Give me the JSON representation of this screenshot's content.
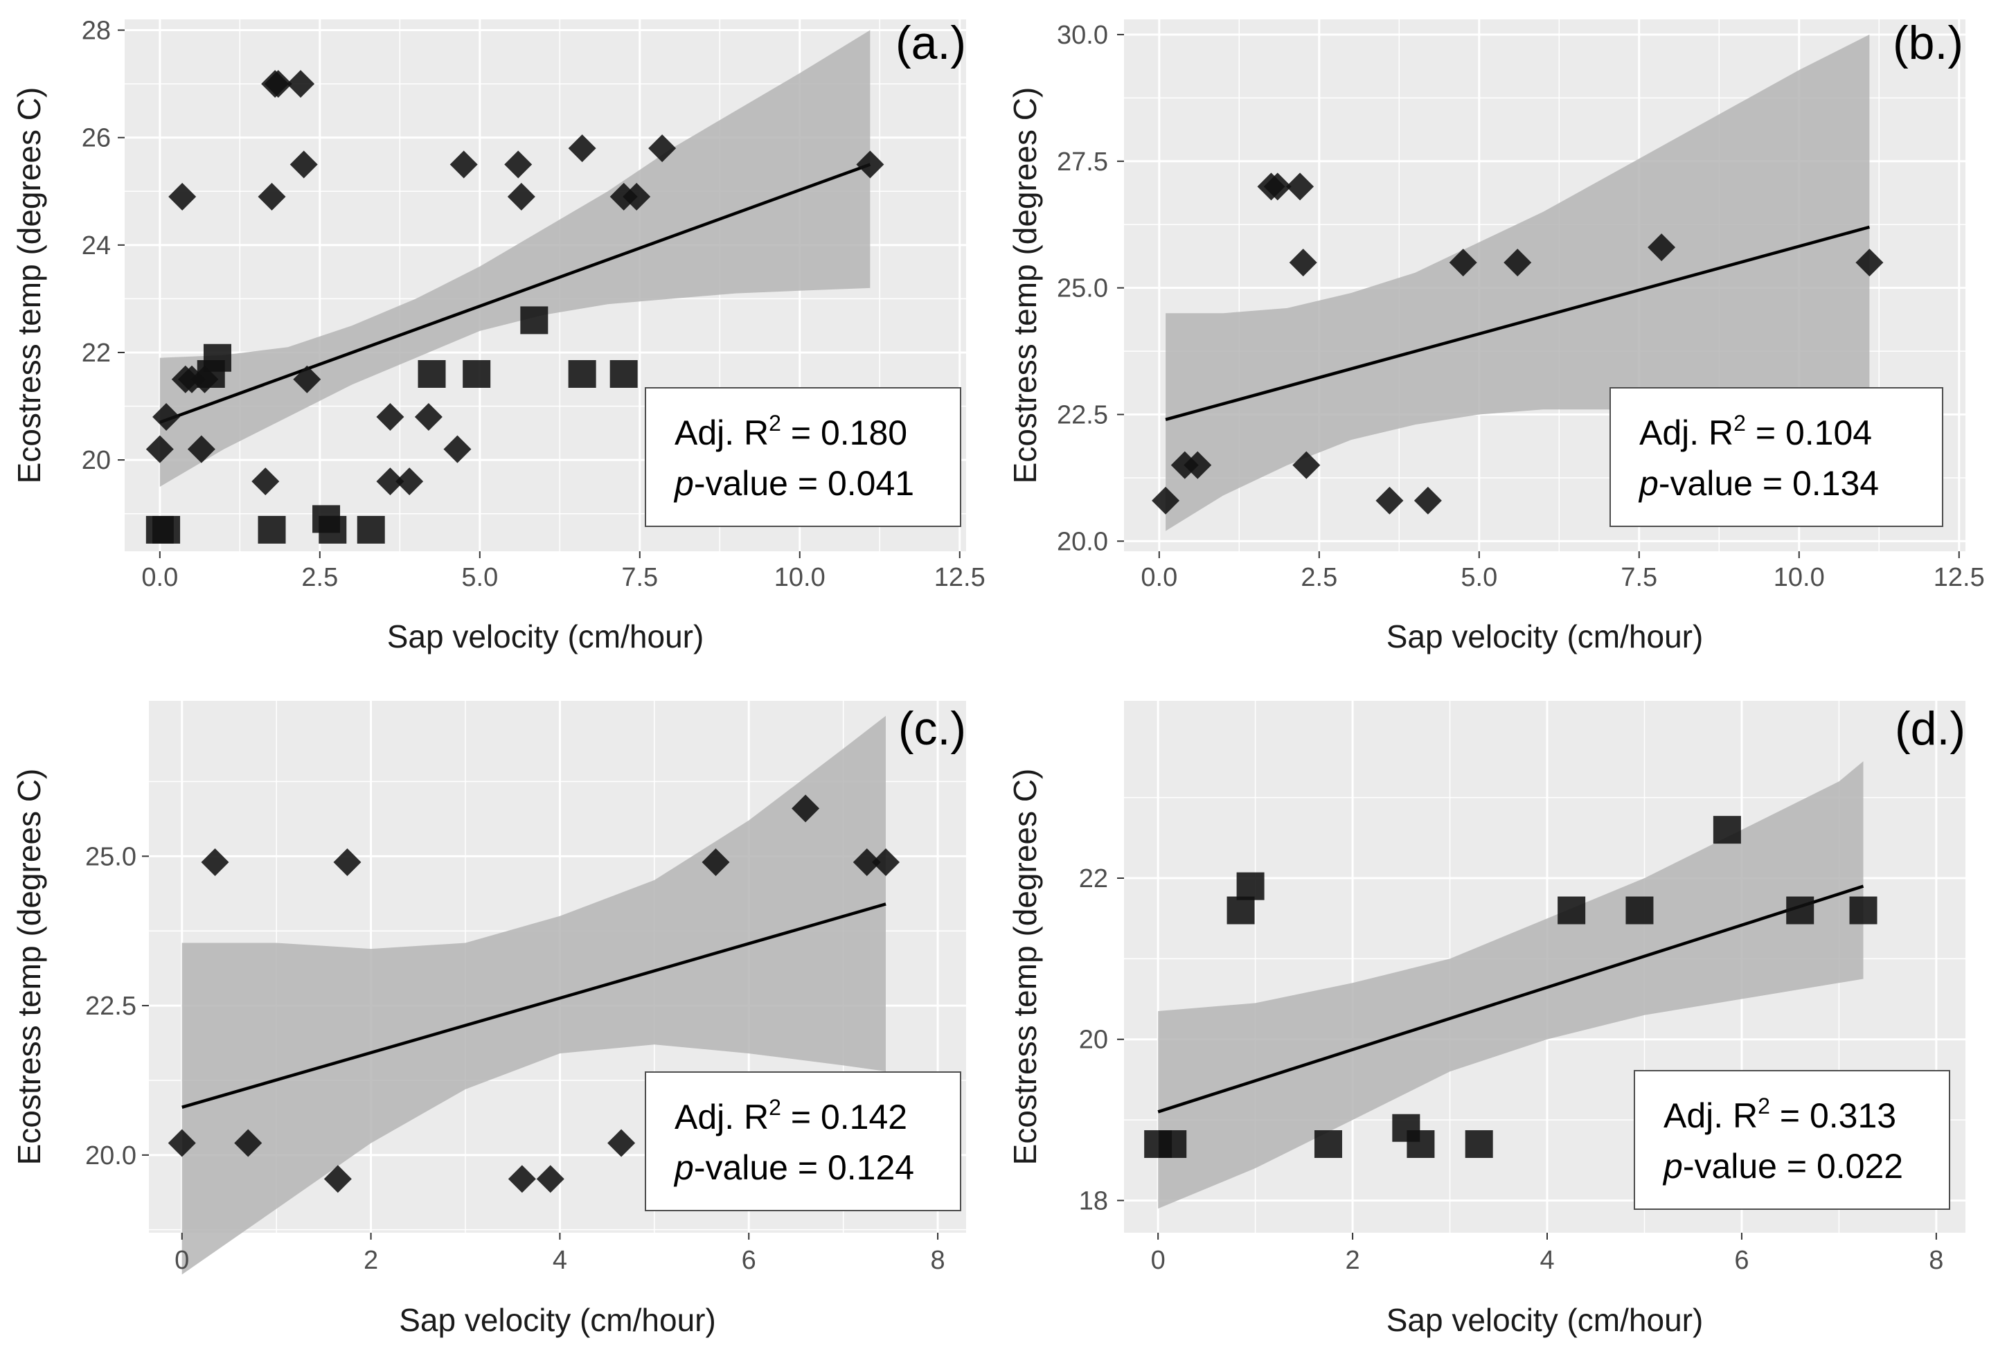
{
  "figure": {
    "background": "#ffffff",
    "panel_background": "#ebebeb",
    "grid_color": "#ffffff",
    "ribbon_color": "#b5b5b5",
    "line_color": "#000000"
  },
  "chart_data": [
    {
      "id": "a",
      "type": "scatter",
      "panel_label": "(a.)",
      "xlabel": "Sap velocity (cm/hour)",
      "ylabel": "Ecostress temp (degrees C)",
      "xlim": [
        -0.55,
        12.6
      ],
      "ylim": [
        18.3,
        28.2
      ],
      "xticks": [
        0,
        2.5,
        5,
        7.5,
        10,
        12.5
      ],
      "xtick_labels": [
        "0.0",
        "2.5",
        "5.0",
        "7.5",
        "10.0",
        "12.5"
      ],
      "yticks": [
        20,
        22,
        24,
        26,
        28
      ],
      "ytick_labels": [
        "20",
        "22",
        "24",
        "26",
        "28"
      ],
      "stats": {
        "r2_label": "Adj. R",
        "r2_sup": "2",
        "r2_value": " = 0.180",
        "p_label": "p",
        "p_value": "-value = 0.041"
      },
      "fit": {
        "x": [
          0,
          11.1
        ],
        "y": [
          20.7,
          25.5
        ]
      },
      "ribbon": {
        "x": [
          0,
          1,
          2,
          3,
          4,
          5,
          6,
          7,
          8,
          9,
          10,
          11.1
        ],
        "lower": [
          19.5,
          20.2,
          20.8,
          21.4,
          21.9,
          22.4,
          22.7,
          22.9,
          23.0,
          23.1,
          23.15,
          23.2
        ],
        "upper": [
          21.9,
          21.95,
          22.1,
          22.5,
          23.0,
          23.6,
          24.3,
          25.0,
          25.8,
          26.5,
          27.2,
          28.0
        ]
      },
      "series": [
        {
          "name": "diamond",
          "marker": "diamond",
          "points": [
            [
              0,
              20.2
            ],
            [
              0.1,
              20.8
            ],
            [
              0.35,
              24.9
            ],
            [
              0.4,
              21.5
            ],
            [
              0.5,
              21.5
            ],
            [
              0.65,
              20.2
            ],
            [
              0.7,
              21.5
            ],
            [
              1.65,
              19.6
            ],
            [
              1.75,
              24.9
            ],
            [
              1.8,
              27.0
            ],
            [
              1.85,
              27.0
            ],
            [
              2.2,
              27.0
            ],
            [
              2.25,
              25.5
            ],
            [
              2.3,
              21.5
            ],
            [
              3.6,
              20.8
            ],
            [
              3.6,
              19.6
            ],
            [
              3.9,
              19.6
            ],
            [
              4.2,
              20.8
            ],
            [
              4.65,
              20.2
            ],
            [
              4.75,
              25.5
            ],
            [
              5.6,
              25.5
            ],
            [
              5.65,
              24.9
            ],
            [
              6.6,
              25.8
            ],
            [
              7.25,
              24.9
            ],
            [
              7.45,
              24.9
            ],
            [
              7.85,
              25.8
            ],
            [
              11.1,
              25.5
            ]
          ]
        },
        {
          "name": "square",
          "marker": "square",
          "points": [
            [
              0,
              18.7
            ],
            [
              0.1,
              18.7
            ],
            [
              0.8,
              21.6
            ],
            [
              0.9,
              21.9
            ],
            [
              1.75,
              18.7
            ],
            [
              2.6,
              18.9
            ],
            [
              2.7,
              18.7
            ],
            [
              3.3,
              18.7
            ],
            [
              4.25,
              21.6
            ],
            [
              4.95,
              21.6
            ],
            [
              5.85,
              22.6
            ],
            [
              6.6,
              21.6
            ],
            [
              7.25,
              21.6
            ]
          ]
        }
      ]
    },
    {
      "id": "b",
      "type": "scatter",
      "panel_label": "(b.)",
      "xlabel": "Sap velocity (cm/hour)",
      "ylabel": "Ecostress temp (degrees C)",
      "xlim": [
        -0.55,
        12.6
      ],
      "ylim": [
        19.8,
        30.3
      ],
      "xticks": [
        0,
        2.5,
        5,
        7.5,
        10,
        12.5
      ],
      "xtick_labels": [
        "0.0",
        "2.5",
        "5.0",
        "7.5",
        "10.0",
        "12.5"
      ],
      "yticks": [
        20,
        22.5,
        25,
        27.5,
        30
      ],
      "ytick_labels": [
        "20.0",
        "22.5",
        "25.0",
        "27.5",
        "30.0"
      ],
      "stats": {
        "r2_label": "Adj. R",
        "r2_sup": "2",
        "r2_value": " = 0.104",
        "p_label": "p",
        "p_value": "-value = 0.134"
      },
      "fit": {
        "x": [
          0.1,
          11.1
        ],
        "y": [
          22.4,
          26.2
        ]
      },
      "ribbon": {
        "x": [
          0.1,
          1,
          2,
          3,
          4,
          5,
          6,
          7,
          8,
          9,
          10,
          11.1
        ],
        "lower": [
          20.2,
          20.9,
          21.5,
          22.0,
          22.3,
          22.5,
          22.6,
          22.6,
          22.55,
          22.5,
          22.45,
          22.4
        ],
        "upper": [
          24.5,
          24.5,
          24.6,
          24.9,
          25.3,
          25.9,
          26.5,
          27.2,
          27.9,
          28.6,
          29.3,
          30.0
        ]
      },
      "series": [
        {
          "name": "diamond",
          "marker": "diamond",
          "points": [
            [
              0.1,
              20.8
            ],
            [
              0.4,
              21.5
            ],
            [
              0.6,
              21.5
            ],
            [
              1.75,
              27.0
            ],
            [
              1.85,
              27.0
            ],
            [
              2.2,
              27.0
            ],
            [
              2.25,
              25.5
            ],
            [
              2.3,
              21.5
            ],
            [
              3.6,
              20.8
            ],
            [
              4.2,
              20.8
            ],
            [
              4.75,
              25.5
            ],
            [
              5.6,
              25.5
            ],
            [
              7.85,
              25.8
            ],
            [
              11.1,
              25.5
            ]
          ]
        }
      ]
    },
    {
      "id": "c",
      "type": "scatter",
      "panel_label": "(c.)",
      "xlabel": "Sap velocity (cm/hour)",
      "ylabel": "Ecostress temp (degrees C)",
      "xlim": [
        -0.35,
        8.3
      ],
      "ylim": [
        18.7,
        27.6
      ],
      "xticks": [
        0,
        2,
        4,
        6,
        8
      ],
      "xtick_labels": [
        "0",
        "2",
        "4",
        "6",
        "8"
      ],
      "yticks": [
        20,
        22.5,
        25
      ],
      "ytick_labels": [
        "20.0",
        "22.5",
        "25.0"
      ],
      "stats": {
        "r2_label": "Adj. R",
        "r2_sup": "2",
        "r2_value": " = 0.142",
        "p_label": "p",
        "p_value": "-value = 0.124"
      },
      "fit": {
        "x": [
          0,
          7.45
        ],
        "y": [
          20.8,
          24.2
        ]
      },
      "ribbon": {
        "x": [
          0,
          1,
          2,
          3,
          4,
          5,
          6,
          7,
          7.45
        ],
        "lower": [
          18.0,
          19.1,
          20.2,
          21.1,
          21.7,
          21.85,
          21.7,
          21.5,
          21.4
        ],
        "upper": [
          23.55,
          23.55,
          23.45,
          23.55,
          24.0,
          24.6,
          25.6,
          26.8,
          27.35
        ]
      },
      "series": [
        {
          "name": "diamond",
          "marker": "diamond",
          "points": [
            [
              0,
              20.2
            ],
            [
              0.35,
              24.9
            ],
            [
              0.7,
              20.2
            ],
            [
              1.65,
              19.6
            ],
            [
              1.75,
              24.9
            ],
            [
              3.6,
              19.6
            ],
            [
              3.9,
              19.6
            ],
            [
              4.65,
              20.2
            ],
            [
              5.65,
              24.9
            ],
            [
              6.6,
              25.8
            ],
            [
              7.25,
              24.9
            ],
            [
              7.45,
              24.9
            ]
          ]
        }
      ]
    },
    {
      "id": "d",
      "type": "scatter",
      "panel_label": "(d.)",
      "xlabel": "Sap velocity (cm/hour)",
      "ylabel": "Ecostress temp (degrees C)",
      "xlim": [
        -0.35,
        8.3
      ],
      "ylim": [
        17.6,
        24.2
      ],
      "xticks": [
        0,
        2,
        4,
        6,
        8
      ],
      "xtick_labels": [
        "0",
        "2",
        "4",
        "6",
        "8"
      ],
      "yticks": [
        18,
        20,
        22
      ],
      "ytick_labels": [
        "18",
        "20",
        "22"
      ],
      "stats": {
        "r2_label": "Adj. R",
        "r2_sup": "2",
        "r2_value": " = 0.313",
        "p_label": "p",
        "p_value": "-value = 0.022"
      },
      "fit": {
        "x": [
          0,
          7.25
        ],
        "y": [
          19.1,
          21.9
        ]
      },
      "ribbon": {
        "x": [
          0,
          1,
          2,
          3,
          4,
          5,
          6,
          7,
          7.25
        ],
        "lower": [
          17.9,
          18.4,
          19.0,
          19.6,
          20.0,
          20.3,
          20.5,
          20.7,
          20.75
        ],
        "upper": [
          20.35,
          20.45,
          20.7,
          21.0,
          21.5,
          22.0,
          22.6,
          23.2,
          23.45
        ]
      },
      "series": [
        {
          "name": "square",
          "marker": "square",
          "points": [
            [
              0,
              18.7
            ],
            [
              0.15,
              18.7
            ],
            [
              0.85,
              21.6
            ],
            [
              0.95,
              21.9
            ],
            [
              1.75,
              18.7
            ],
            [
              2.55,
              18.9
            ],
            [
              2.7,
              18.7
            ],
            [
              3.3,
              18.7
            ],
            [
              4.25,
              21.6
            ],
            [
              4.95,
              21.6
            ],
            [
              5.85,
              22.6
            ],
            [
              6.6,
              21.6
            ],
            [
              7.25,
              21.6
            ]
          ]
        }
      ]
    }
  ]
}
